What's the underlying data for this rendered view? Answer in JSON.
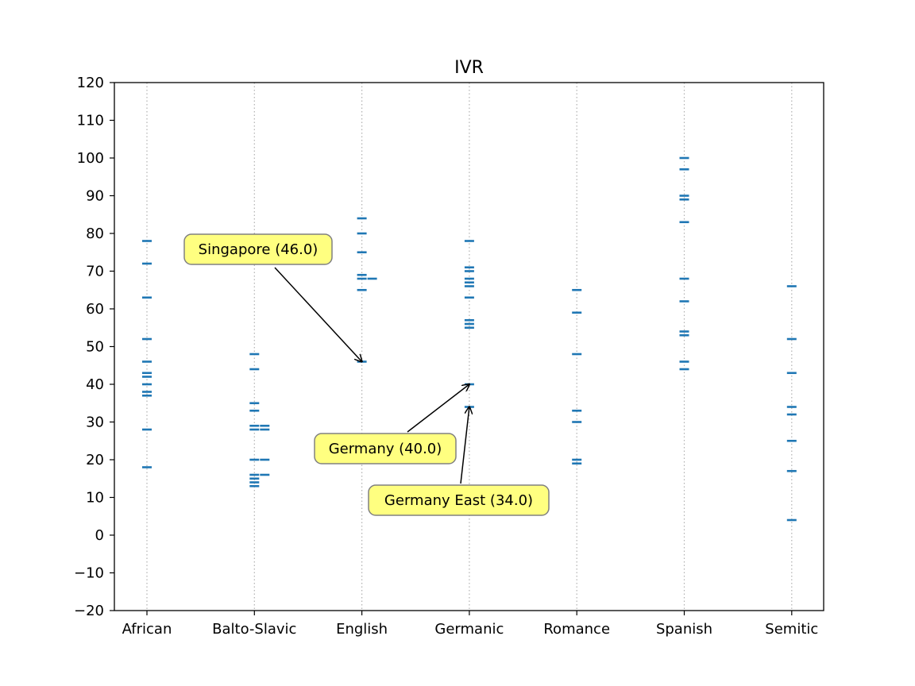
{
  "chart_data": {
    "type": "scatter",
    "title": "IVR",
    "xlabel": "",
    "ylabel": "",
    "ylim": [
      -20,
      120
    ],
    "yticks": [
      -20,
      -10,
      0,
      10,
      20,
      30,
      40,
      50,
      60,
      70,
      80,
      90,
      100,
      110,
      120
    ],
    "categories": [
      "African",
      "Balto-Slavic",
      "English",
      "Germanic",
      "Romance",
      "Spanish",
      "Semitic"
    ],
    "marker": "horizontal-dash",
    "marker_color": "#1f77b4",
    "category_gridlines": "dotted",
    "points": [
      {
        "category": "African",
        "offset": 0,
        "values": [
          78,
          72,
          63,
          52,
          46,
          43,
          42,
          40,
          38,
          37,
          28,
          18
        ]
      },
      {
        "category": "Balto-Slavic",
        "offset": 0,
        "values": [
          48,
          44,
          35,
          33,
          29,
          28,
          20,
          16,
          15,
          14,
          13
        ]
      },
      {
        "category": "Balto-Slavic",
        "offset": 1,
        "values": [
          29,
          28,
          20,
          16
        ]
      },
      {
        "category": "English",
        "offset": 0,
        "values": [
          84,
          80,
          75,
          69,
          68,
          65,
          46
        ]
      },
      {
        "category": "English",
        "offset": 1,
        "values": [
          68
        ]
      },
      {
        "category": "Germanic",
        "offset": 0,
        "values": [
          78,
          71,
          70,
          68,
          67,
          66,
          63,
          57,
          56,
          55,
          40,
          34
        ]
      },
      {
        "category": "Romance",
        "offset": 0,
        "values": [
          65,
          59,
          48,
          33,
          30,
          20,
          19
        ]
      },
      {
        "category": "Spanish",
        "offset": 0,
        "values": [
          100,
          97,
          90,
          89,
          83,
          68,
          62,
          54,
          53,
          46,
          44
        ]
      },
      {
        "category": "Semitic",
        "offset": 0,
        "values": [
          66,
          52,
          43,
          34,
          32,
          25,
          17,
          4
        ]
      }
    ],
    "annotations": [
      {
        "text": "Singapore (46.0)",
        "category": "English",
        "value": 46
      },
      {
        "text": "Germany (40.0)",
        "category": "Germanic",
        "value": 40
      },
      {
        "text": "Germany East (34.0)",
        "category": "Germanic",
        "value": 34
      }
    ],
    "annotation_box_color": "#ffff80",
    "annotation_edge_color": "#808080"
  }
}
